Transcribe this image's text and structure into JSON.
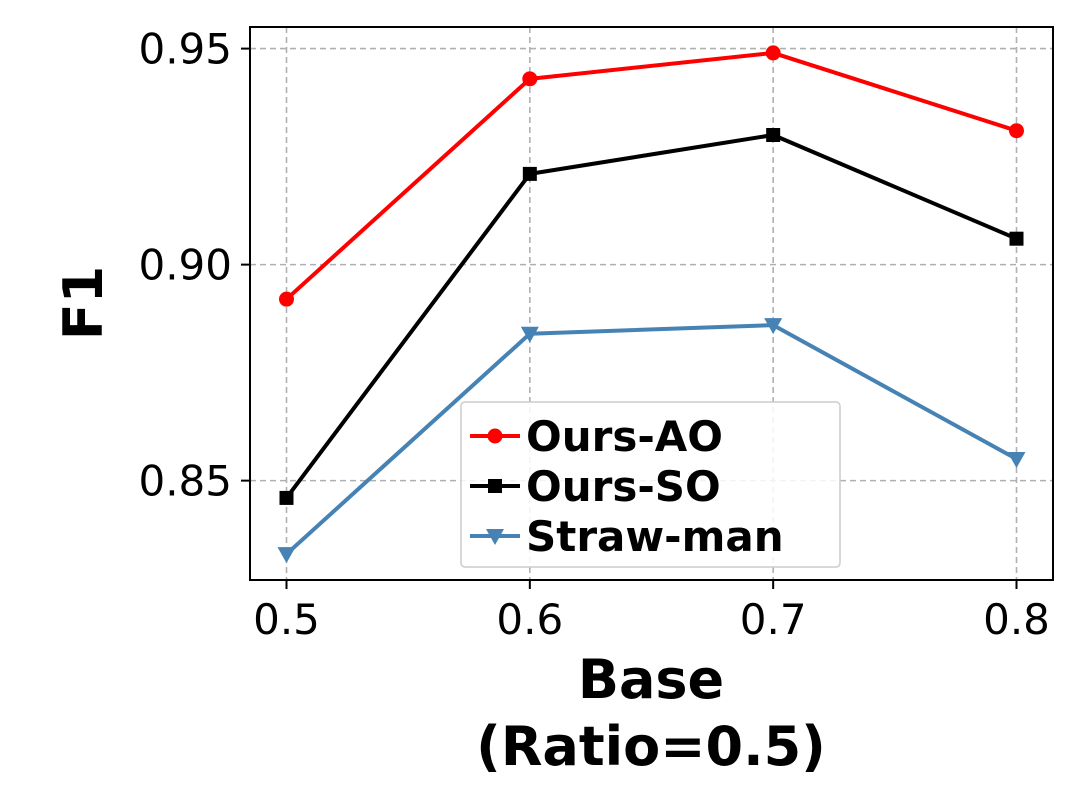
{
  "chart_data": {
    "type": "line",
    "x": [
      0.5,
      0.6,
      0.7,
      0.8
    ],
    "x_tick_labels": [
      "0.5",
      "0.6",
      "0.7",
      "0.8"
    ],
    "y_ticks": [
      0.85,
      0.9,
      0.95
    ],
    "y_tick_labels": [
      "0.85",
      "0.90",
      "0.95"
    ],
    "xlim": [
      0.485,
      0.815
    ],
    "ylim": [
      0.827,
      0.955
    ],
    "xlabel_line1": "Base",
    "xlabel_line2": "(Ratio=0.5)",
    "ylabel": "F1",
    "grid": true,
    "legend_position": "lower-center",
    "series": [
      {
        "name": "Ours-AO",
        "color": "#ff0000",
        "marker": "circle",
        "values": [
          0.892,
          0.943,
          0.949,
          0.931
        ]
      },
      {
        "name": "Ours-SO",
        "color": "#000000",
        "marker": "square",
        "values": [
          0.846,
          0.921,
          0.93,
          0.906
        ]
      },
      {
        "name": "Straw-man",
        "color": "#4682b4",
        "marker": "triangle-down",
        "values": [
          0.833,
          0.884,
          0.886,
          0.855
        ]
      }
    ]
  }
}
